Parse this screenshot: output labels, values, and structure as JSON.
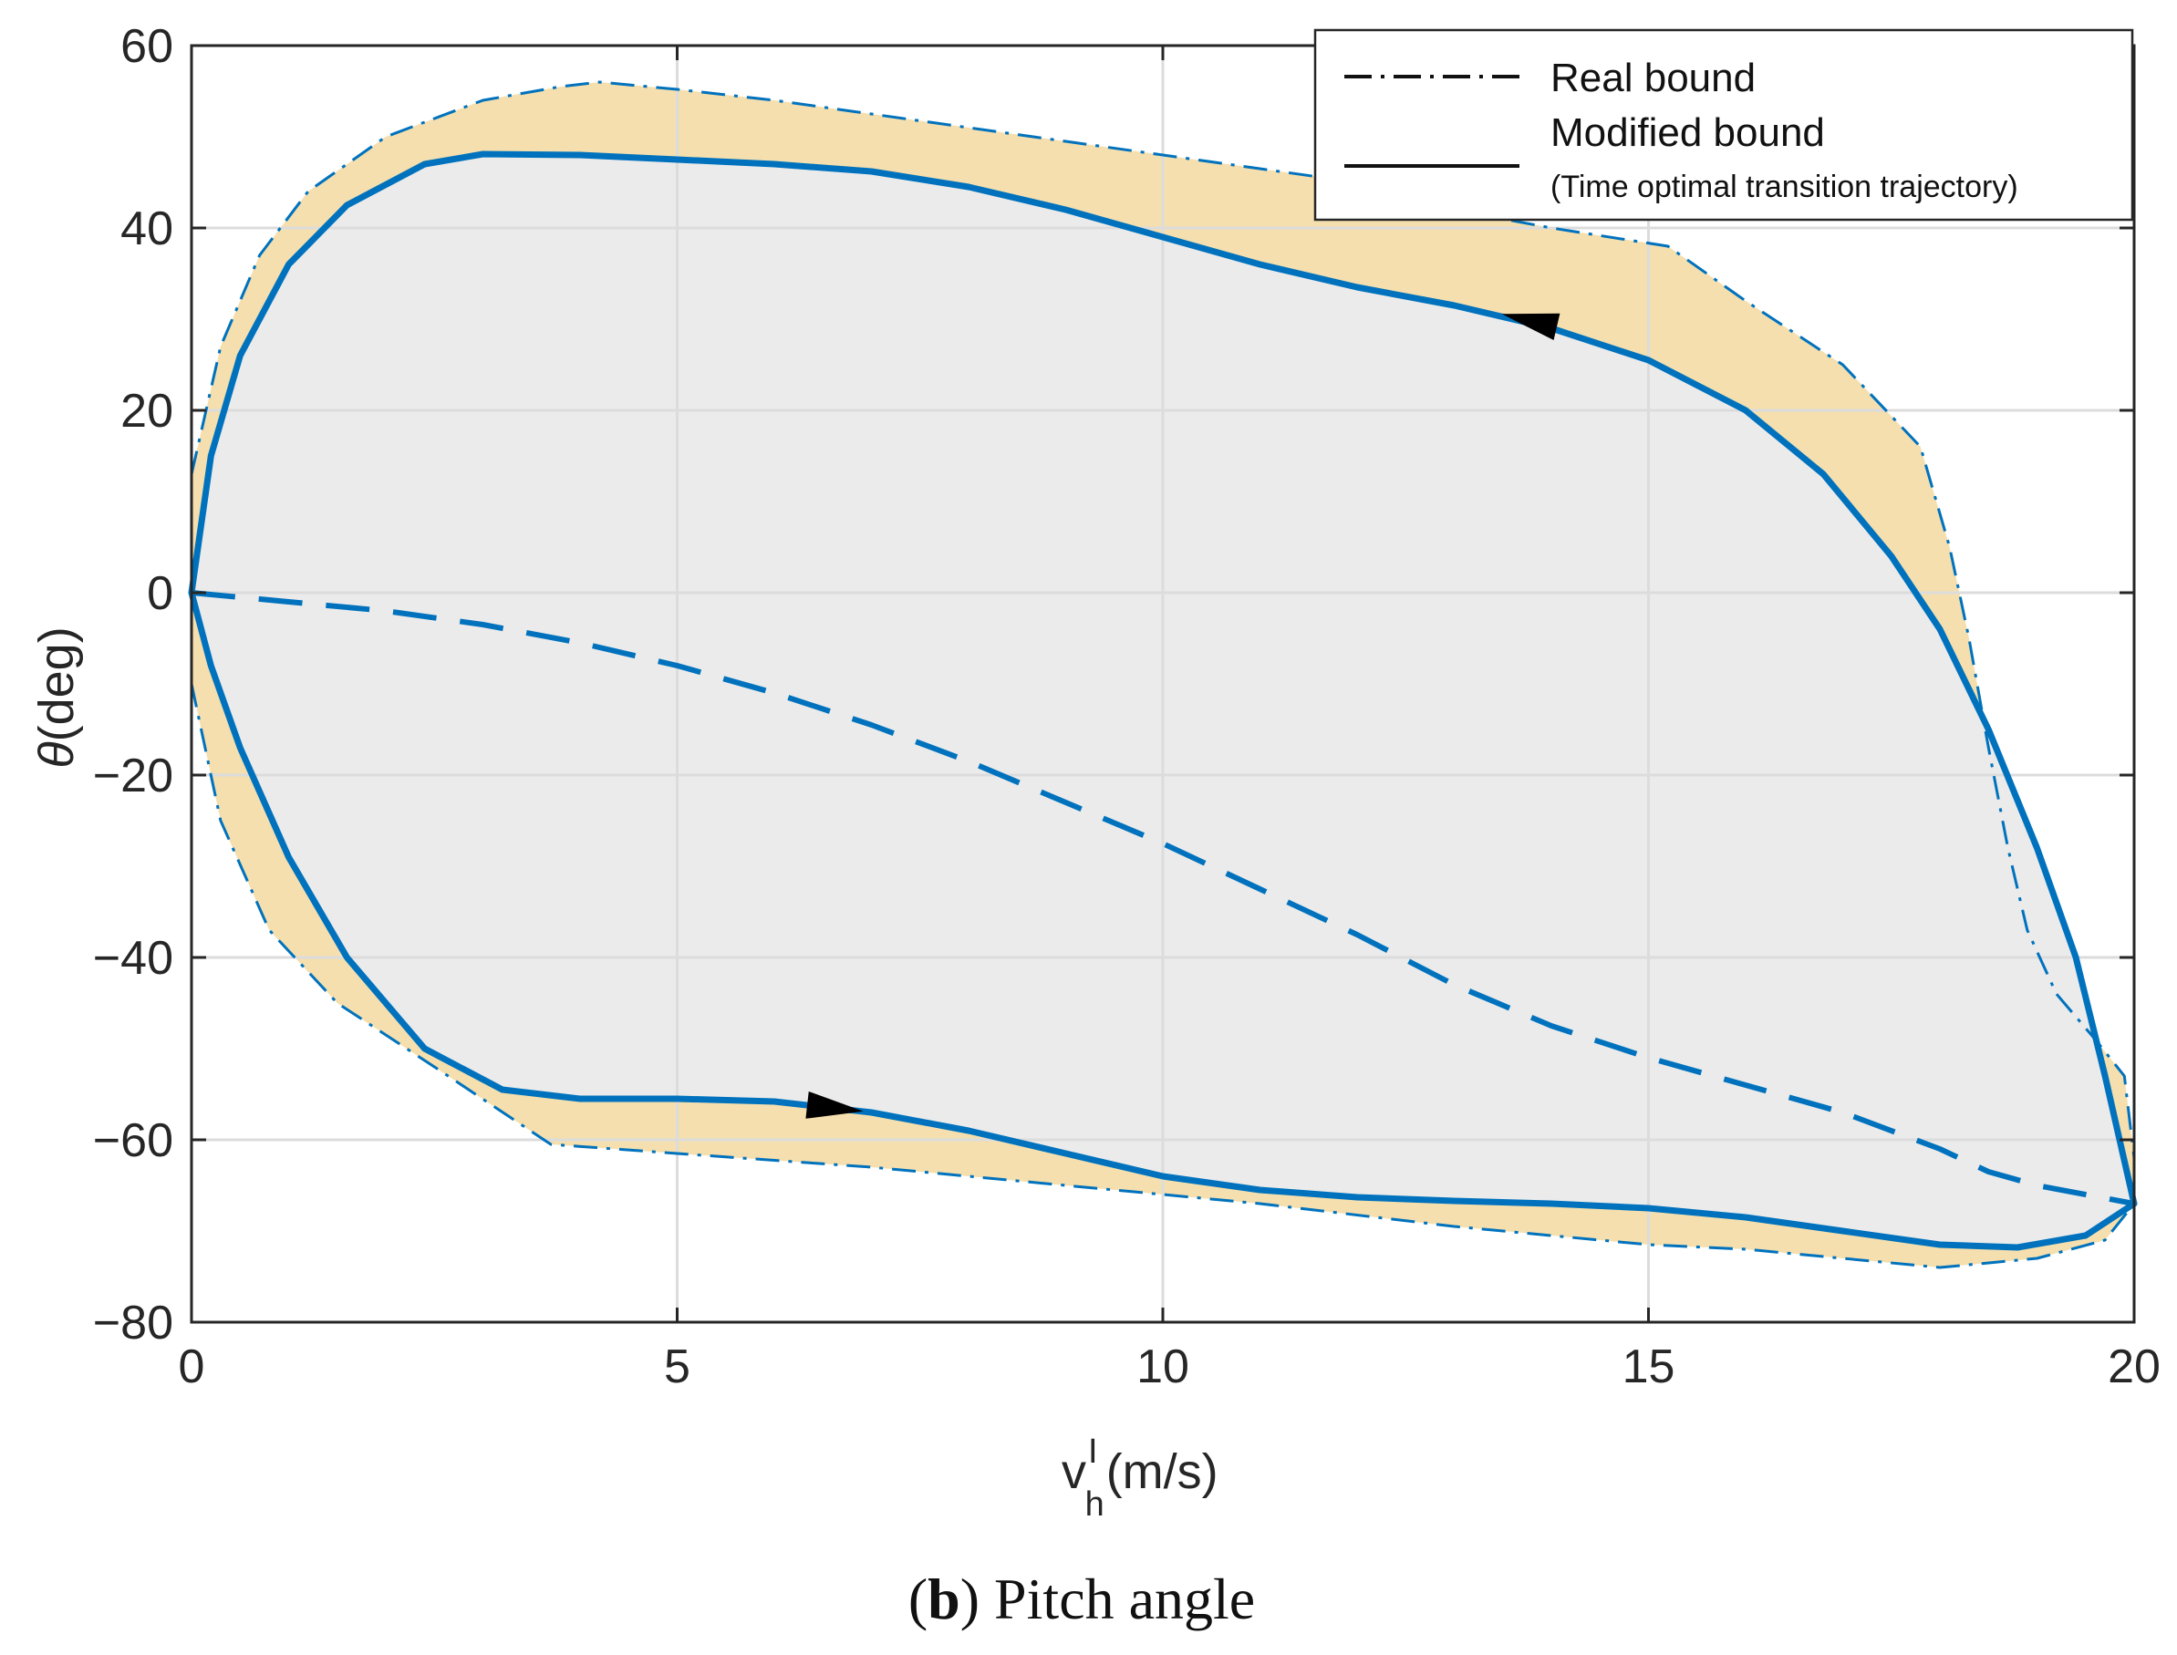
{
  "chart_data": {
    "type": "line",
    "title": "",
    "caption": {
      "prefix": "(",
      "letter": "b",
      "suffix": ") Pitch angle"
    },
    "xlabel": {
      "main": "v",
      "sup": "I",
      "sub": "h",
      "unit": "(m/s)"
    },
    "ylabel": {
      "symbol": "θ",
      "unit": "(deg)"
    },
    "xlim": [
      0,
      20
    ],
    "ylim": [
      -80,
      60
    ],
    "xticks": [
      0,
      5,
      10,
      15,
      20
    ],
    "xtick_labels": [
      "0",
      "5",
      "10",
      "15",
      "20"
    ],
    "yticks": [
      -80,
      -60,
      -40,
      -20,
      0,
      20,
      40,
      60
    ],
    "ytick_labels": [
      "−80",
      "−60",
      "−40",
      "−20",
      "0",
      "20",
      "40",
      "60"
    ],
    "grid": true,
    "legend": {
      "position": "top-right",
      "entries": [
        {
          "label": "Real bound",
          "style": "dash-dot"
        },
        {
          "label": "Modified bound",
          "style": "solid"
        },
        {
          "label": "(Time optimal transition trajectory)",
          "style": "none"
        }
      ]
    },
    "colors": {
      "line": "#0072BD",
      "fill_gap": "#F5DFAE",
      "fill_inside": "#EBEBEB",
      "grid": "#DCDCDC",
      "axis": "#262626",
      "arrow": "#000000"
    },
    "series": [
      {
        "name": "Real bound upper",
        "style": "dash-dot",
        "points": [
          [
            0,
            13
          ],
          [
            0.3,
            27
          ],
          [
            0.7,
            37
          ],
          [
            1.2,
            44
          ],
          [
            2,
            50
          ],
          [
            3,
            54
          ],
          [
            3.8,
            55.5
          ],
          [
            4.2,
            56
          ],
          [
            5,
            55.2
          ],
          [
            6,
            54
          ],
          [
            7,
            52.5
          ],
          [
            8,
            51
          ],
          [
            9,
            49.5
          ],
          [
            10,
            48
          ],
          [
            11,
            46.5
          ],
          [
            12,
            45
          ],
          [
            13,
            42
          ],
          [
            14,
            40
          ],
          [
            15.2,
            38
          ],
          [
            16,
            32
          ],
          [
            17,
            25
          ],
          [
            17.8,
            16
          ],
          [
            18.1,
            5
          ],
          [
            18.3,
            -5
          ],
          [
            18.5,
            -17
          ],
          [
            18.7,
            -28
          ],
          [
            18.9,
            -37
          ],
          [
            19.2,
            -44
          ],
          [
            19.6,
            -49
          ],
          [
            19.9,
            -53
          ],
          [
            20,
            -62
          ]
        ]
      },
      {
        "name": "Real bound lower",
        "style": "dash-dot",
        "points": [
          [
            0,
            -10
          ],
          [
            0.3,
            -25
          ],
          [
            0.8,
            -37
          ],
          [
            1.5,
            -45
          ],
          [
            2.5,
            -52
          ],
          [
            3.7,
            -60.5
          ],
          [
            5,
            -61.5
          ],
          [
            7,
            -63
          ],
          [
            9,
            -65
          ],
          [
            11,
            -67
          ],
          [
            13,
            -69.5
          ],
          [
            15,
            -71.5
          ],
          [
            16,
            -72
          ],
          [
            17,
            -73
          ],
          [
            18,
            -74
          ],
          [
            19,
            -73
          ],
          [
            19.7,
            -71
          ],
          [
            20,
            -67
          ]
        ]
      },
      {
        "name": "Modified bound upper",
        "style": "solid",
        "points": [
          [
            0,
            0
          ],
          [
            0.2,
            15
          ],
          [
            0.5,
            26
          ],
          [
            1,
            36
          ],
          [
            1.6,
            42.5
          ],
          [
            2.4,
            47
          ],
          [
            3,
            48.1
          ],
          [
            4,
            48
          ],
          [
            5,
            47.5
          ],
          [
            6,
            47
          ],
          [
            7,
            46.2
          ],
          [
            8,
            44.5
          ],
          [
            9,
            42
          ],
          [
            10,
            39
          ],
          [
            11,
            36
          ],
          [
            12,
            33.5
          ],
          [
            13,
            31.5
          ],
          [
            14,
            29
          ],
          [
            15,
            25.5
          ],
          [
            16,
            20
          ],
          [
            16.8,
            13
          ],
          [
            17.5,
            4
          ],
          [
            18,
            -4
          ],
          [
            18.5,
            -15
          ],
          [
            19,
            -28
          ],
          [
            19.4,
            -40
          ],
          [
            19.7,
            -53
          ],
          [
            20,
            -67
          ]
        ]
      },
      {
        "name": "Modified bound lower",
        "style": "solid",
        "points": [
          [
            0,
            0
          ],
          [
            0.2,
            -8
          ],
          [
            0.5,
            -17
          ],
          [
            1,
            -29
          ],
          [
            1.6,
            -40
          ],
          [
            2.4,
            -50
          ],
          [
            3.2,
            -54.5
          ],
          [
            4,
            -55.5
          ],
          [
            5,
            -55.5
          ],
          [
            6,
            -55.8
          ],
          [
            7,
            -57
          ],
          [
            8,
            -59
          ],
          [
            9,
            -61.5
          ],
          [
            10,
            -64
          ],
          [
            11,
            -65.5
          ],
          [
            12,
            -66.3
          ],
          [
            13,
            -66.7
          ],
          [
            14,
            -67
          ],
          [
            15,
            -67.5
          ],
          [
            16,
            -68.5
          ],
          [
            17,
            -70
          ],
          [
            18,
            -71.5
          ],
          [
            18.8,
            -71.8
          ],
          [
            19.5,
            -70.5
          ],
          [
            20,
            -67
          ]
        ]
      },
      {
        "name": "Dashed trajectory",
        "style": "dashed",
        "points": [
          [
            0,
            0
          ],
          [
            1,
            -1
          ],
          [
            2,
            -2
          ],
          [
            3,
            -3.5
          ],
          [
            4,
            -5.5
          ],
          [
            5,
            -8
          ],
          [
            6,
            -11
          ],
          [
            7,
            -14.5
          ],
          [
            8,
            -18.5
          ],
          [
            9,
            -23
          ],
          [
            10,
            -27.5
          ],
          [
            11,
            -32.5
          ],
          [
            12,
            -37.5
          ],
          [
            13,
            -43
          ],
          [
            14,
            -47.5
          ],
          [
            15,
            -51
          ],
          [
            16,
            -54
          ],
          [
            17,
            -57
          ],
          [
            18,
            -61
          ],
          [
            18.2,
            -62
          ],
          [
            18.5,
            -63.5
          ],
          [
            19,
            -65
          ],
          [
            20,
            -67
          ]
        ]
      }
    ],
    "arrows": [
      {
        "series": "Modified bound upper",
        "at": [
          13.8,
          29.8
        ],
        "direction": "left"
      },
      {
        "series": "Modified bound lower",
        "at": [
          6.6,
          -56.5
        ],
        "direction": "right"
      }
    ]
  }
}
